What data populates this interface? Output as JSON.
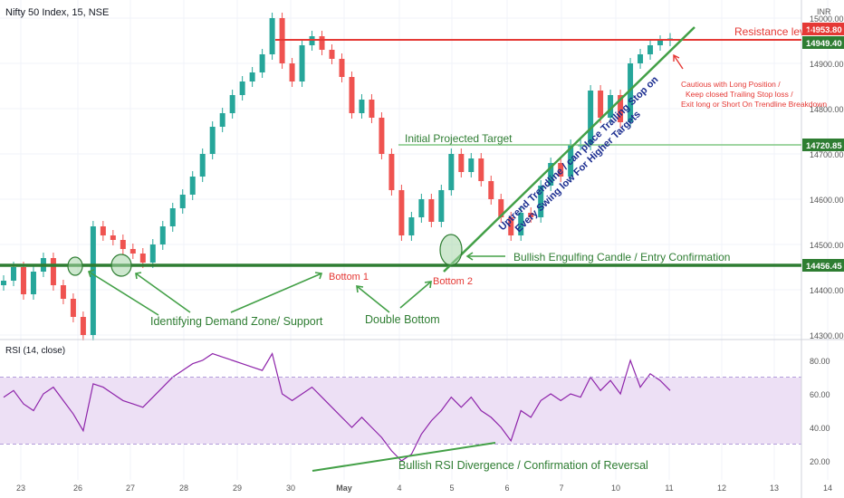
{
  "chart_data": {
    "type": "candlestick",
    "title": "Nifty 50 Index, 15, NSE",
    "currency": "INR",
    "x_labels": [
      "23",
      "26",
      "27",
      "28",
      "29",
      "30",
      "May",
      "4",
      "5",
      "6",
      "7",
      "10",
      "11",
      "12",
      "13",
      "14"
    ],
    "price_axis": {
      "ylim": [
        14280,
        15050
      ],
      "ticks": [
        15000,
        14900,
        14800,
        14700,
        14600,
        14500,
        14400,
        14300
      ]
    },
    "rsi_axis": {
      "ylim": [
        10,
        95
      ],
      "ticks": [
        80,
        60,
        40,
        20
      ],
      "band": [
        30,
        70
      ]
    },
    "rsi_title": "RSI (14, close)",
    "price_tags": [
      {
        "value": 14953.8,
        "label": "14953.80",
        "color": "#e53935"
      },
      {
        "value": 14949.4,
        "label": "14949.40",
        "color": "#2e7d32"
      },
      {
        "value": 14720.85,
        "label": "14720.85",
        "color": "#2e7d32"
      },
      {
        "value": 14456.45,
        "label": "14456.45",
        "color": "#2e7d32"
      }
    ],
    "candles_close": [
      14420,
      14450,
      14390,
      14440,
      14470,
      14410,
      14380,
      14340,
      14300,
      14540,
      14520,
      14510,
      14490,
      14480,
      14460,
      14500,
      14540,
      14580,
      14610,
      14650,
      14700,
      14760,
      14790,
      14830,
      14860,
      14880,
      14920,
      15000,
      14900,
      14860,
      14940,
      14960,
      14930,
      14910,
      14870,
      14790,
      14820,
      14780,
      14700,
      14620,
      14520,
      14560,
      14600,
      14550,
      14620,
      14700,
      14660,
      14690,
      14640,
      14600,
      14560,
      14520,
      14570,
      14560,
      14630,
      14680,
      14650,
      14720,
      14720,
      14840,
      14780,
      14830,
      14770,
      14900,
      14920,
      14940,
      14950,
      14955
    ],
    "rsi_values": [
      58,
      62,
      54,
      50,
      60,
      64,
      56,
      48,
      38,
      66,
      64,
      60,
      56,
      54,
      52,
      58,
      64,
      70,
      74,
      78,
      80,
      84,
      82,
      80,
      78,
      76,
      74,
      84,
      60,
      56,
      60,
      64,
      58,
      52,
      46,
      40,
      46,
      40,
      34,
      26,
      20,
      24,
      36,
      44,
      50,
      58,
      52,
      58,
      50,
      46,
      40,
      32,
      50,
      46,
      56,
      60,
      56,
      60,
      58,
      70,
      62,
      68,
      60,
      80,
      64,
      72,
      68,
      62
    ],
    "annotations": {
      "resistance": "Resistance level",
      "initial_target": "Initial Projected Target",
      "cautious": [
        "Cautious with Long Position /",
        "Keep closed Trailing Stop loss /",
        "Exit long or Short On Trendline Breakdown"
      ],
      "trendline": [
        "Uptrend Trendline / can place Trailing Stop on",
        "Every Swing low For Higher Targets"
      ],
      "engulfing": "Bullish Engulfing Candle / Entry Confirmation",
      "bottom1": "Bottom 1",
      "bottom2": "Bottom 2",
      "demand": "Identifying Demand Zone/ Support",
      "double_bottom": "Double Bottom",
      "rsi_div": "Bullish RSI Divergence / Confirmation of Reversal"
    },
    "colors": {
      "up": "#26a69a",
      "down": "#ef5350",
      "green": "#2e7d32",
      "red": "#e53935",
      "navy": "#1a2c8f",
      "rsi": "#8e24aa",
      "band": "#ede0f5"
    }
  }
}
